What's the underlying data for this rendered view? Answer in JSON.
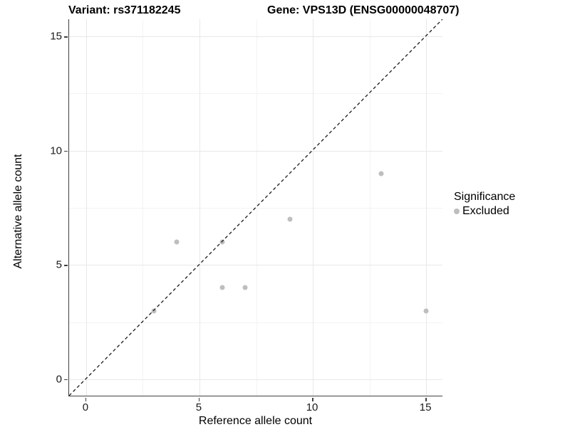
{
  "chart_data": {
    "type": "scatter",
    "title_left": "Variant: rs371182245",
    "title_right": "Gene: VPS13D (ENSG00000048707)",
    "xlabel": "Reference allele count",
    "ylabel": "Alternative allele count",
    "xlim": [
      -0.75,
      15.75
    ],
    "ylim": [
      -0.75,
      15.75
    ],
    "x_ticks": [
      0,
      5,
      10,
      15
    ],
    "y_ticks": [
      0,
      5,
      10,
      15
    ],
    "x_minor_gridlines": [
      2.5,
      7.5,
      12.5
    ],
    "y_minor_gridlines": [
      2.5,
      7.5,
      12.5
    ],
    "grid": true,
    "series": [
      {
        "name": "Excluded",
        "color": "#bebebe",
        "points": [
          {
            "x": 3,
            "y": 3
          },
          {
            "x": 4,
            "y": 6
          },
          {
            "x": 6,
            "y": 4
          },
          {
            "x": 6,
            "y": 6
          },
          {
            "x": 7,
            "y": 4
          },
          {
            "x": 9,
            "y": 7
          },
          {
            "x": 13,
            "y": 9
          },
          {
            "x": 15,
            "y": 3
          }
        ]
      }
    ],
    "identity_line": {
      "type": "abline",
      "slope": 1,
      "intercept": 0,
      "style": "dashed",
      "color": "#1a1a1a"
    },
    "legend": {
      "title": "Significance",
      "position": "right",
      "items": [
        {
          "label": "Excluded",
          "color": "#bebebe",
          "marker": "circle"
        }
      ]
    }
  }
}
